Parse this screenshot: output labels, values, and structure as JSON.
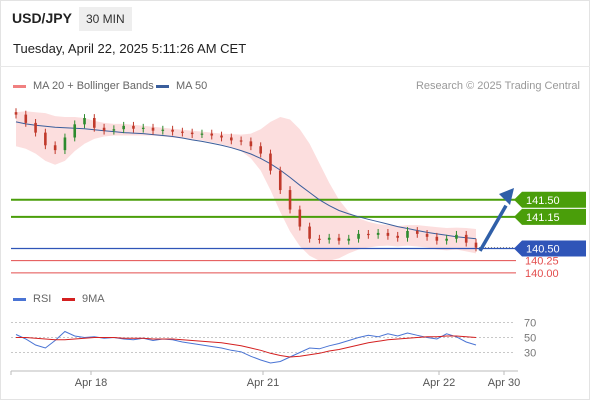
{
  "header": {
    "pair": "USD/JPY",
    "timeframe": "30 MIN",
    "date": "Tuesday, April 22, 2025 5:11:26 AM CET"
  },
  "legend": {
    "ma20_bb": "MA 20 + Bollinger Bands",
    "ma50": "MA 50",
    "credit": "Research © 2025 Trading Central",
    "rsi": "RSI",
    "rsi_ma": "9MA"
  },
  "colors": {
    "bollinger": "#f08080",
    "ma50": "#3a5e9c",
    "up": "#2e8b2e",
    "down": "#c0392b",
    "resistance": "#4a9e0a",
    "pivot": "#2f55b8",
    "support": "#e34d4d",
    "rsi": "#4a74d4",
    "rsi_ma": "#d42020"
  },
  "chart_data": [
    {
      "type": "line",
      "x_ticks": [
        "Apr 18",
        "Apr 21",
        "Apr 22",
        "Apr 30"
      ],
      "price_levels": [
        {
          "label": "141.50",
          "value": 141.5,
          "kind": "resistance"
        },
        {
          "label": "141.15",
          "value": 141.15,
          "kind": "resistance"
        },
        {
          "label": "140.50",
          "value": 140.5,
          "kind": "pivot"
        },
        {
          "label": "140.25",
          "value": 140.25,
          "kind": "support"
        },
        {
          "label": "140.00",
          "value": 140.0,
          "kind": "support"
        }
      ],
      "series": [
        {
          "name": "MA 20 + Bollinger Bands"
        },
        {
          "name": "MA 50"
        }
      ],
      "close": [
        143.25,
        143.08,
        142.88,
        142.62,
        142.52,
        142.78,
        143.05,
        143.18,
        142.98,
        142.92,
        142.95,
        143.02,
        142.96,
        142.98,
        142.92,
        142.94,
        142.9,
        142.88,
        142.85,
        142.86,
        142.82,
        142.78,
        142.72,
        142.7,
        142.6,
        142.45,
        142.1,
        141.7,
        141.3,
        140.95,
        140.7,
        140.68,
        140.72,
        140.66,
        140.7,
        140.8,
        140.78,
        140.82,
        140.76,
        140.72,
        140.86,
        140.8,
        140.74,
        140.66,
        140.7,
        140.78,
        140.62,
        140.52
      ],
      "ma50": [
        143.1,
        143.06,
        143.03,
        143.01,
        142.99,
        142.98,
        142.97,
        142.96,
        142.94,
        142.92,
        142.9,
        142.88,
        142.87,
        142.86,
        142.84,
        142.82,
        142.8,
        142.77,
        142.73,
        142.7,
        142.66,
        142.62,
        142.57,
        142.51,
        142.44,
        142.35,
        142.24,
        142.11,
        141.96,
        141.8,
        141.65,
        141.5,
        141.38,
        141.28,
        141.21,
        141.15,
        141.1,
        141.05,
        141.0,
        140.95,
        140.91,
        140.87,
        140.83,
        140.8,
        140.77,
        140.74,
        140.72,
        140.7
      ],
      "bb_upper": [
        143.3,
        143.32,
        143.3,
        143.28,
        143.22,
        143.2,
        143.2,
        143.18,
        143.12,
        143.08,
        143.06,
        143.06,
        143.04,
        143.02,
        143.0,
        142.98,
        142.96,
        142.94,
        142.92,
        142.9,
        142.88,
        142.86,
        142.85,
        142.84,
        142.86,
        142.95,
        143.1,
        143.2,
        143.15,
        142.95,
        142.65,
        142.25,
        141.85,
        141.5,
        141.25,
        141.12,
        141.05,
        141.0,
        140.98,
        140.96,
        140.98,
        140.98,
        140.96,
        140.94,
        140.92,
        140.93,
        140.92,
        140.9
      ],
      "bb_lower": [
        142.6,
        142.55,
        142.45,
        142.3,
        142.22,
        142.3,
        142.5,
        142.65,
        142.75,
        142.8,
        142.82,
        142.82,
        142.82,
        142.82,
        142.82,
        142.8,
        142.78,
        142.76,
        142.74,
        142.72,
        142.68,
        142.64,
        142.58,
        142.5,
        142.35,
        142.1,
        141.7,
        141.25,
        140.85,
        140.55,
        140.35,
        140.25,
        140.25,
        140.3,
        140.4,
        140.48,
        140.52,
        140.55,
        140.56,
        140.54,
        140.56,
        140.54,
        140.52,
        140.48,
        140.46,
        140.48,
        140.44,
        140.4
      ],
      "ylim": [
        139.75,
        143.55
      ]
    },
    {
      "type": "line",
      "series": [
        {
          "name": "RSI"
        },
        {
          "name": "9MA"
        }
      ],
      "y_ticks": [
        70,
        50,
        30
      ],
      "ylim": [
        20,
        80
      ],
      "rsi": [
        54,
        48,
        40,
        36,
        46,
        58,
        52,
        50,
        51,
        49,
        50,
        48,
        47,
        49,
        46,
        48,
        47,
        44,
        42,
        40,
        38,
        36,
        33,
        31,
        25,
        20,
        16,
        18,
        24,
        30,
        36,
        35,
        39,
        42,
        46,
        50,
        53,
        51,
        55,
        52,
        56,
        53,
        50,
        48,
        55,
        51,
        44,
        40
      ],
      "rsi_ma": [
        50,
        50,
        49,
        48,
        47,
        47,
        48,
        49,
        50,
        50,
        50,
        49,
        49,
        49,
        48,
        48,
        48,
        47,
        46,
        45,
        44,
        43,
        41,
        39,
        36,
        33,
        29,
        26,
        24,
        25,
        27,
        29,
        32,
        34,
        37,
        40,
        43,
        45,
        47,
        48,
        49,
        50,
        51,
        51,
        52,
        52,
        51,
        50
      ]
    }
  ]
}
